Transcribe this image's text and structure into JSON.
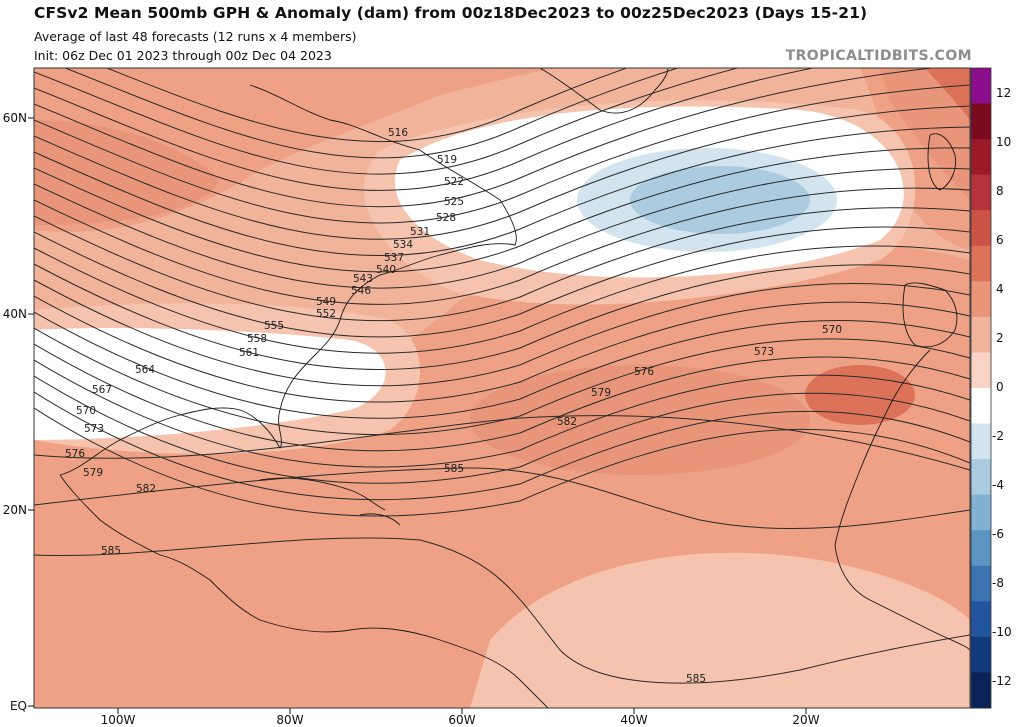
{
  "header": {
    "title": "CFSv2 Mean 500mb GPH & Anomaly (dam) from 00z18Dec2023 to 00z25Dec2023 (Days 15-21)",
    "subtitle1": "Average of last 48 forecasts (12 runs x 4 members)",
    "subtitle2": "Init: 06z Dec 01 2023 through 00z Dec 04 2023",
    "watermark": "TROPICALTIDBITS.COM"
  },
  "map": {
    "lat_ticks": [
      "60N",
      "40N",
      "20N",
      "EQ"
    ],
    "lon_ticks": [
      "100W",
      "80W",
      "60W",
      "40W",
      "20W"
    ],
    "contour_labels": [
      "516",
      "519",
      "522",
      "525",
      "528",
      "531",
      "534",
      "537",
      "540",
      "543",
      "546",
      "549",
      "552",
      "555",
      "558",
      "561",
      "564",
      "567",
      "570",
      "573",
      "576",
      "579",
      "582",
      "585",
      "570",
      "573",
      "576",
      "579",
      "582",
      "585",
      "585"
    ]
  },
  "colorbar": {
    "ticks": [
      "12",
      "10",
      "8",
      "6",
      "4",
      "2",
      "0",
      "-2",
      "-4",
      "-6",
      "-8",
      "-10",
      "-12"
    ],
    "colors": [
      "#8b0d8b",
      "#7a0a1e",
      "#9c1a28",
      "#b5333a",
      "#cc5446",
      "#dc7359",
      "#e8957a",
      "#f2b39b",
      "#f9d3c3",
      "#ffffff",
      "#d2e4ef",
      "#aacbe0",
      "#82b1d3",
      "#5c94c2",
      "#3c74b1",
      "#23559c",
      "#113a7d",
      "#0b2358"
    ]
  }
}
